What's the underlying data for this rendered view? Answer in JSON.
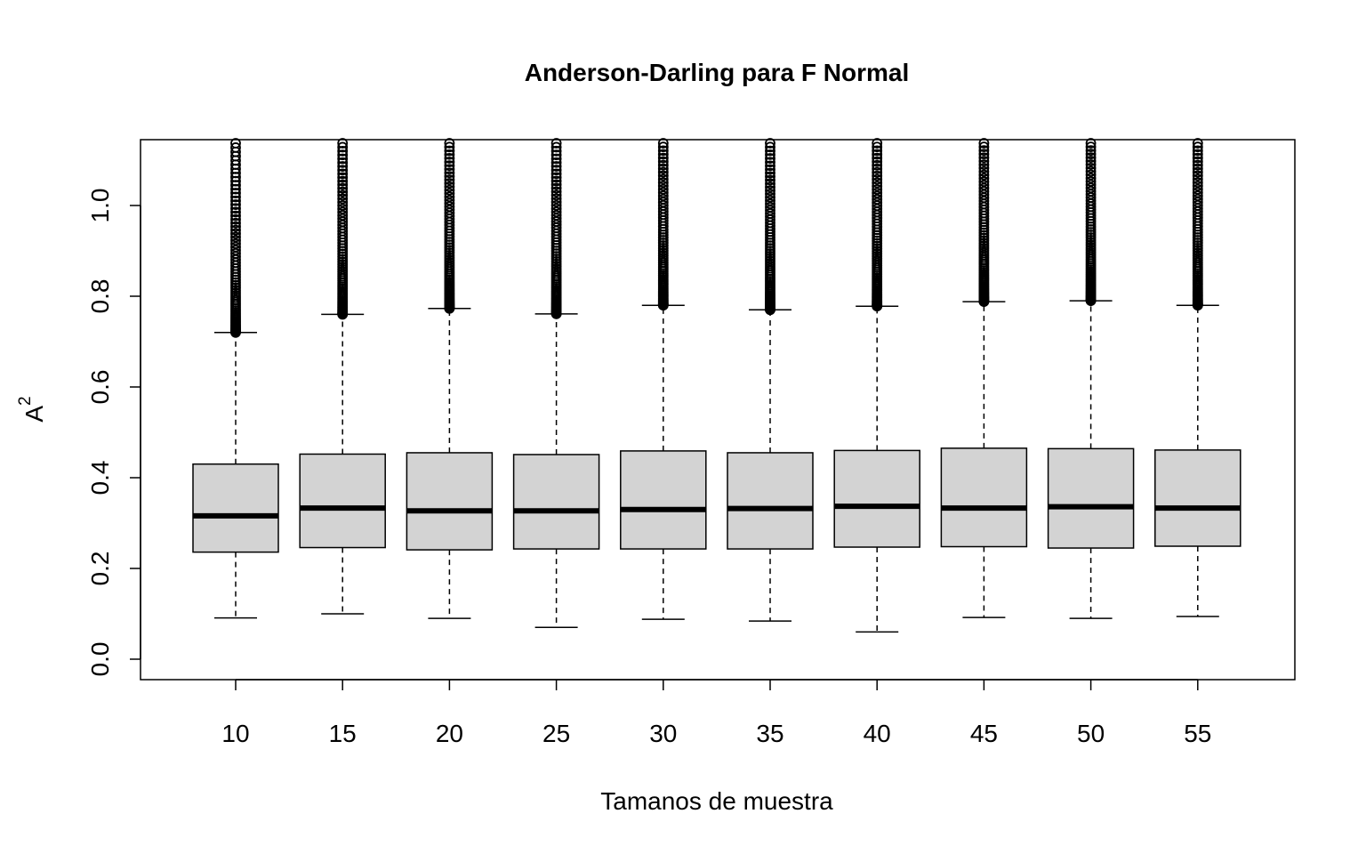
{
  "chart_data": {
    "type": "boxplot",
    "title": "Anderson-Darling para F Normal",
    "xlabel": "Tamanos de muestra",
    "ylabel": "A",
    "ylabel_superscript": "2",
    "ylim": [
      0.0,
      1.15
    ],
    "y_ticks": [
      "0.0",
      "0.2",
      "0.4",
      "0.6",
      "0.8",
      "1.0"
    ],
    "categories": [
      "10",
      "15",
      "20",
      "25",
      "30",
      "35",
      "40",
      "45",
      "50",
      "55"
    ],
    "colors": {
      "box_fill": "#d3d3d3",
      "stroke": "#000000"
    },
    "series": [
      {
        "name": "10",
        "whisker_low": 0.091,
        "q1": 0.236,
        "median": 0.316,
        "q3": 0.43,
        "whisker_high": 0.72,
        "outliers_from": 0.72,
        "outliers_to": 1.15
      },
      {
        "name": "15",
        "whisker_low": 0.1,
        "q1": 0.246,
        "median": 0.333,
        "q3": 0.452,
        "whisker_high": 0.76,
        "outliers_from": 0.76,
        "outliers_to": 1.15
      },
      {
        "name": "20",
        "whisker_low": 0.09,
        "q1": 0.241,
        "median": 0.327,
        "q3": 0.455,
        "whisker_high": 0.773,
        "outliers_from": 0.773,
        "outliers_to": 1.15
      },
      {
        "name": "25",
        "whisker_low": 0.07,
        "q1": 0.243,
        "median": 0.327,
        "q3": 0.451,
        "whisker_high": 0.761,
        "outliers_from": 0.761,
        "outliers_to": 1.15
      },
      {
        "name": "30",
        "whisker_low": 0.088,
        "q1": 0.243,
        "median": 0.33,
        "q3": 0.459,
        "whisker_high": 0.78,
        "outliers_from": 0.78,
        "outliers_to": 1.15
      },
      {
        "name": "35",
        "whisker_low": 0.084,
        "q1": 0.243,
        "median": 0.332,
        "q3": 0.455,
        "whisker_high": 0.77,
        "outliers_from": 0.77,
        "outliers_to": 1.15
      },
      {
        "name": "40",
        "whisker_low": 0.06,
        "q1": 0.247,
        "median": 0.337,
        "q3": 0.46,
        "whisker_high": 0.778,
        "outliers_from": 0.778,
        "outliers_to": 1.15
      },
      {
        "name": "45",
        "whisker_low": 0.092,
        "q1": 0.248,
        "median": 0.333,
        "q3": 0.465,
        "whisker_high": 0.788,
        "outliers_from": 0.788,
        "outliers_to": 1.15
      },
      {
        "name": "50",
        "whisker_low": 0.09,
        "q1": 0.245,
        "median": 0.336,
        "q3": 0.464,
        "whisker_high": 0.79,
        "outliers_from": 0.79,
        "outliers_to": 1.15
      },
      {
        "name": "55",
        "whisker_low": 0.094,
        "q1": 0.249,
        "median": 0.333,
        "q3": 0.461,
        "whisker_high": 0.78,
        "outliers_from": 0.78,
        "outliers_to": 1.15
      }
    ]
  }
}
